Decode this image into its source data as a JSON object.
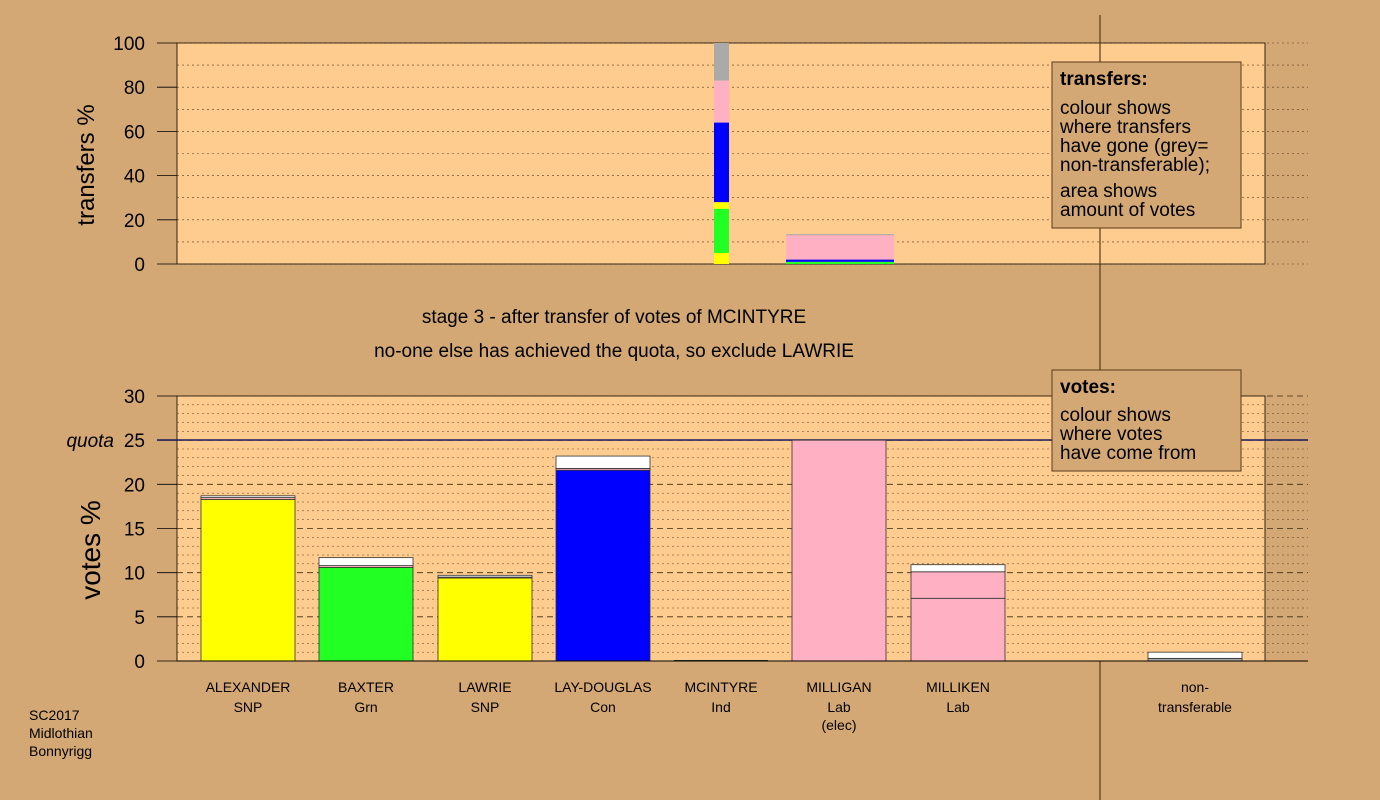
{
  "colors": {
    "background": "#d4a874",
    "plot_bg": "#ffcc8f",
    "SNP": "#ffff00",
    "Grn": "#22ff22",
    "Con": "#0000ff",
    "Ind": "#808080",
    "Lab": "#ffb0c2",
    "nontransferable": "#aaaaaa",
    "new_votes": "#ffffff"
  },
  "headline": {
    "line1": "stage 3 - after transfer of votes of MCINTYRE",
    "line2": "no-one else has achieved the quota, so exclude LAWRIE"
  },
  "footer": {
    "line1": "SC2017",
    "line2": "Midlothian",
    "line3": "Bonnyrigg"
  },
  "chart_data": [
    {
      "type": "bar",
      "id": "transfers",
      "ylabel": "transfers %",
      "ylim": [
        0,
        100
      ],
      "yticks": [
        0,
        20,
        40,
        60,
        80,
        100
      ],
      "grid": true,
      "legend": {
        "title": "transfers:",
        "lines": [
          "colour shows",
          "where transfers",
          "have gone (grey=",
          "non-transferable);"
        ],
        "lines2": [
          "area shows",
          "amount of votes"
        ]
      },
      "bars": [
        {
          "candidate": "MCINTYRE",
          "segments": [
            {
              "party": "SNP",
              "from": 0,
              "to": 5
            },
            {
              "party": "Grn",
              "from": 5,
              "to": 25
            },
            {
              "party": "SNP",
              "from": 25,
              "to": 28
            },
            {
              "party": "Con",
              "from": 28,
              "to": 64
            },
            {
              "party": "Lab",
              "from": 64,
              "to": 83
            },
            {
              "party": "nontransferable",
              "from": 83,
              "to": 100
            }
          ]
        },
        {
          "candidate": "MILLIGAN",
          "segments": [
            {
              "party": "Grn",
              "from": 0,
              "to": 1
            },
            {
              "party": "Con",
              "from": 1,
              "to": 2
            },
            {
              "party": "Lab",
              "from": 2,
              "to": 13
            },
            {
              "party": "nontransferable",
              "from": 13,
              "to": 13.5
            }
          ]
        }
      ]
    },
    {
      "type": "bar",
      "id": "votes",
      "ylabel": "votes %",
      "ylim": [
        0,
        30
      ],
      "yticks": [
        0,
        5,
        10,
        15,
        20,
        25,
        30
      ],
      "quota": {
        "label": "quota",
        "value": 25
      },
      "grid": true,
      "legend": {
        "title": "votes:",
        "lines": [
          "colour shows",
          "where votes",
          "have come from"
        ]
      },
      "candidates": [
        {
          "name": "ALEXANDER",
          "party": "SNP",
          "segments": [
            {
              "party": "SNP",
              "value": 18.3
            },
            {
              "party": "Lab",
              "value": 0.2
            },
            {
              "party": "new_votes",
              "value": 0.2
            }
          ]
        },
        {
          "name": "BAXTER",
          "party": "Grn",
          "segments": [
            {
              "party": "Grn",
              "value": 10.6
            },
            {
              "party": "Lab",
              "value": 0.2
            },
            {
              "party": "new_votes",
              "value": 0.9
            }
          ]
        },
        {
          "name": "LAWRIE",
          "party": "SNP",
          "segments": [
            {
              "party": "SNP",
              "value": 9.4
            },
            {
              "party": "Lab",
              "value": 0.1
            },
            {
              "party": "new_votes",
              "value": 0.2
            }
          ]
        },
        {
          "name": "LAY-DOUGLAS",
          "party": "Con",
          "segments": [
            {
              "party": "Con",
              "value": 21.6
            },
            {
              "party": "Lab",
              "value": 0.2
            },
            {
              "party": "new_votes",
              "value": 1.4
            }
          ]
        },
        {
          "name": "MCINTYRE",
          "party": "Ind",
          "segments": []
        },
        {
          "name": "MILLIGAN",
          "party": "Lab",
          "extra": "(elec)",
          "segments": [
            {
              "party": "Lab",
              "value": 25.0
            }
          ]
        },
        {
          "name": "MILLIKEN",
          "party": "Lab",
          "segments": [
            {
              "party": "Lab",
              "value": 7.1
            },
            {
              "party": "Lab",
              "value": 3.0
            },
            {
              "party": "new_votes",
              "value": 0.8
            }
          ]
        }
      ],
      "nontransferable": {
        "label_line1": "non-",
        "label_line2": "transferable",
        "segments": [
          {
            "party": "nontransferable",
            "value": 0.3
          },
          {
            "party": "new_votes",
            "value": 0.7
          }
        ]
      }
    }
  ]
}
